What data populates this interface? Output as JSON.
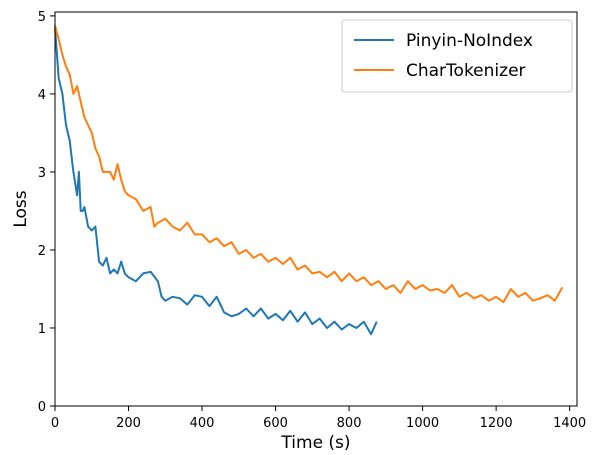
{
  "chart_data": {
    "type": "line",
    "title": "",
    "xlabel": "Time (s)",
    "ylabel": "Loss",
    "xlim": [
      0,
      1420
    ],
    "ylim": [
      0,
      5.05
    ],
    "xticks": [
      "0",
      "200",
      "400",
      "600",
      "800",
      "1000",
      "1200",
      "1400"
    ],
    "yticks": [
      "0",
      "1",
      "2",
      "3",
      "4",
      "5"
    ],
    "legend_position": "top-right",
    "grid": false,
    "series": [
      {
        "name": "Pinyin-NoIndex",
        "color": "#1f77b4",
        "x": [
          0,
          10,
          20,
          30,
          40,
          50,
          60,
          65,
          70,
          75,
          80,
          90,
          100,
          110,
          120,
          130,
          140,
          150,
          160,
          170,
          180,
          190,
          200,
          220,
          240,
          260,
          280,
          290,
          300,
          320,
          340,
          360,
          380,
          400,
          420,
          440,
          460,
          480,
          500,
          520,
          540,
          560,
          580,
          600,
          620,
          640,
          660,
          680,
          700,
          720,
          740,
          760,
          780,
          800,
          820,
          840,
          860,
          875
        ],
        "y": [
          4.85,
          4.2,
          4.0,
          3.6,
          3.4,
          3.0,
          2.7,
          3.0,
          2.5,
          2.5,
          2.55,
          2.3,
          2.25,
          2.3,
          1.85,
          1.8,
          1.9,
          1.7,
          1.75,
          1.7,
          1.85,
          1.7,
          1.65,
          1.6,
          1.7,
          1.72,
          1.6,
          1.4,
          1.35,
          1.4,
          1.38,
          1.3,
          1.42,
          1.4,
          1.28,
          1.4,
          1.2,
          1.15,
          1.18,
          1.25,
          1.15,
          1.25,
          1.12,
          1.18,
          1.1,
          1.22,
          1.08,
          1.2,
          1.05,
          1.12,
          1.0,
          1.08,
          0.98,
          1.05,
          1.0,
          1.08,
          0.92,
          1.08
        ]
      },
      {
        "name": "CharTokenizer",
        "color": "#ff7f0e",
        "x": [
          0,
          10,
          20,
          30,
          40,
          50,
          60,
          70,
          80,
          90,
          100,
          110,
          120,
          130,
          140,
          150,
          160,
          170,
          180,
          190,
          200,
          220,
          240,
          260,
          270,
          280,
          300,
          320,
          340,
          360,
          380,
          400,
          420,
          440,
          460,
          480,
          500,
          520,
          540,
          560,
          580,
          600,
          620,
          640,
          660,
          680,
          700,
          720,
          740,
          760,
          780,
          800,
          820,
          840,
          860,
          880,
          900,
          920,
          940,
          960,
          980,
          1000,
          1020,
          1040,
          1060,
          1080,
          1100,
          1120,
          1140,
          1160,
          1180,
          1200,
          1220,
          1240,
          1260,
          1280,
          1300,
          1320,
          1340,
          1360,
          1380
        ],
        "y": [
          4.88,
          4.7,
          4.5,
          4.35,
          4.25,
          4.0,
          4.1,
          3.9,
          3.7,
          3.6,
          3.5,
          3.3,
          3.2,
          3.0,
          3.0,
          3.0,
          2.9,
          3.1,
          2.9,
          2.75,
          2.7,
          2.65,
          2.5,
          2.55,
          2.3,
          2.35,
          2.4,
          2.3,
          2.25,
          2.35,
          2.2,
          2.2,
          2.1,
          2.15,
          2.05,
          2.1,
          1.95,
          2.0,
          1.9,
          1.95,
          1.85,
          1.9,
          1.82,
          1.9,
          1.75,
          1.8,
          1.7,
          1.72,
          1.65,
          1.72,
          1.6,
          1.7,
          1.6,
          1.65,
          1.55,
          1.6,
          1.5,
          1.55,
          1.45,
          1.6,
          1.5,
          1.55,
          1.48,
          1.5,
          1.45,
          1.55,
          1.4,
          1.45,
          1.38,
          1.42,
          1.35,
          1.4,
          1.33,
          1.5,
          1.4,
          1.45,
          1.35,
          1.38,
          1.42,
          1.35,
          1.52
        ]
      }
    ]
  }
}
